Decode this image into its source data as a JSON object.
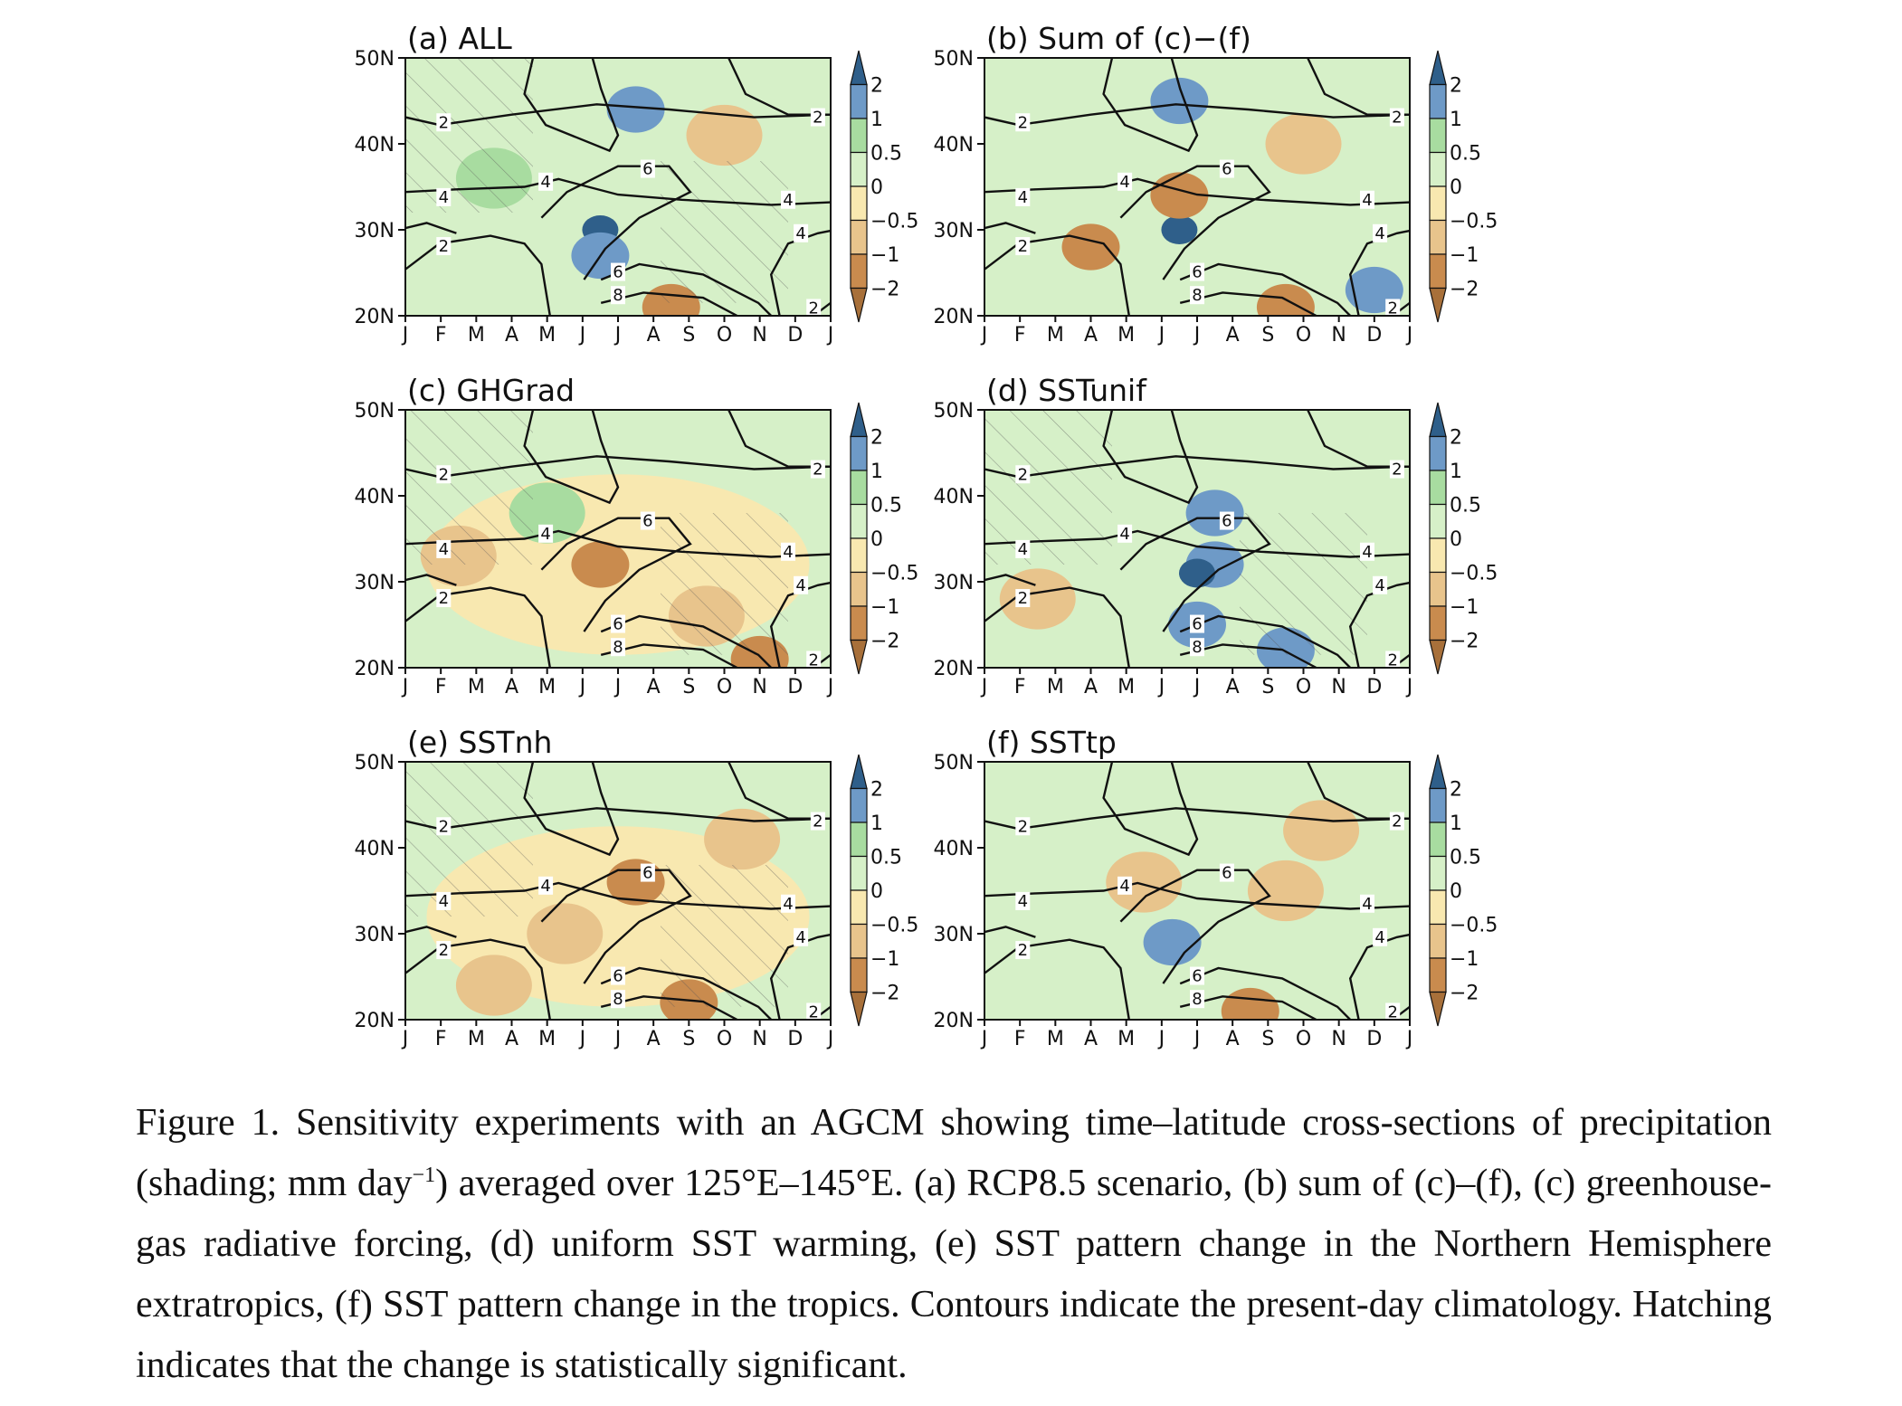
{
  "chart_data": [
    {
      "type": "heatmap",
      "id": "a",
      "title": "(a) ALL",
      "hatched": true,
      "ylabels": [
        "50N",
        "40N",
        "30N",
        "20N"
      ],
      "ylim": [
        20,
        50
      ],
      "months": [
        "J",
        "F",
        "M",
        "A",
        "M",
        "J",
        "J",
        "A",
        "S",
        "O",
        "N",
        "D",
        "J"
      ],
      "blobs": [
        {
          "month": 5.5,
          "lat": 30,
          "level": 2
        },
        {
          "month": 5.5,
          "lat": 27,
          "level": 1.5
        },
        {
          "month": 6.5,
          "lat": 44,
          "level": 1
        },
        {
          "month": 7.5,
          "lat": 21,
          "level": -1
        },
        {
          "month": 9,
          "lat": 41,
          "level": -0.6
        },
        {
          "month": 2.5,
          "lat": 36,
          "level": 0.6
        }
      ]
    },
    {
      "type": "heatmap",
      "id": "b",
      "title": "(b) Sum of (c)−(f)",
      "hatched": false,
      "ylabels": [
        "50N",
        "40N",
        "30N",
        "20N"
      ],
      "ylim": [
        20,
        50
      ],
      "months": [
        "J",
        "F",
        "M",
        "A",
        "M",
        "J",
        "J",
        "A",
        "S",
        "O",
        "N",
        "D",
        "J"
      ],
      "blobs": [
        {
          "month": 5.5,
          "lat": 30,
          "level": 2
        },
        {
          "month": 5.5,
          "lat": 34,
          "level": -1
        },
        {
          "month": 3,
          "lat": 28,
          "level": -1
        },
        {
          "month": 5.5,
          "lat": 45,
          "level": 1
        },
        {
          "month": 8.5,
          "lat": 21,
          "level": -1
        },
        {
          "month": 9,
          "lat": 40,
          "level": -0.6
        },
        {
          "month": 11,
          "lat": 23,
          "level": 1
        }
      ]
    },
    {
      "type": "heatmap",
      "id": "c",
      "title": "(c) GHGrad",
      "hatched": true,
      "ylabels": [
        "50N",
        "40N",
        "30N",
        "20N"
      ],
      "ylim": [
        20,
        50
      ],
      "months": [
        "J",
        "F",
        "M",
        "A",
        "M",
        "J",
        "J",
        "A",
        "S",
        "O",
        "N",
        "D",
        "J"
      ],
      "blobs": [
        {
          "month": 5.5,
          "lat": 32,
          "level": -1
        },
        {
          "month": 8.5,
          "lat": 26,
          "level": -0.6
        },
        {
          "month": 10,
          "lat": 21,
          "level": -1
        },
        {
          "month": 1.5,
          "lat": 33,
          "level": -0.6
        },
        {
          "month": 4,
          "lat": 38,
          "level": 0.6
        }
      ]
    },
    {
      "type": "heatmap",
      "id": "d",
      "title": "(d) SSTunif",
      "hatched": true,
      "ylabels": [
        "50N",
        "40N",
        "30N",
        "20N"
      ],
      "ylim": [
        20,
        50
      ],
      "months": [
        "J",
        "F",
        "M",
        "A",
        "M",
        "J",
        "J",
        "A",
        "S",
        "O",
        "N",
        "D",
        "J"
      ],
      "blobs": [
        {
          "month": 6.5,
          "lat": 32,
          "level": 1.5
        },
        {
          "month": 6,
          "lat": 25,
          "level": 1
        },
        {
          "month": 8.5,
          "lat": 22,
          "level": 1
        },
        {
          "month": 6.5,
          "lat": 38,
          "level": 1
        },
        {
          "month": 6,
          "lat": 31,
          "level": 2
        },
        {
          "month": 1.5,
          "lat": 28,
          "level": -0.6
        }
      ]
    },
    {
      "type": "heatmap",
      "id": "e",
      "title": "(e) SSTnh",
      "hatched": true,
      "ylabels": [
        "50N",
        "40N",
        "30N",
        "20N"
      ],
      "ylim": [
        20,
        50
      ],
      "months": [
        "J",
        "F",
        "M",
        "A",
        "M",
        "J",
        "J",
        "A",
        "S",
        "O",
        "N",
        "D",
        "J"
      ],
      "blobs": [
        {
          "month": 6.5,
          "lat": 36,
          "level": -1
        },
        {
          "month": 4.5,
          "lat": 30,
          "level": -0.6
        },
        {
          "month": 8,
          "lat": 22,
          "level": -1
        },
        {
          "month": 9.5,
          "lat": 41,
          "level": -0.6
        },
        {
          "month": 2.5,
          "lat": 24,
          "level": -0.6
        }
      ]
    },
    {
      "type": "heatmap",
      "id": "f",
      "title": "(f) SSTtp",
      "hatched": false,
      "ylabels": [
        "50N",
        "40N",
        "30N",
        "20N"
      ],
      "ylim": [
        20,
        50
      ],
      "months": [
        "J",
        "F",
        "M",
        "A",
        "M",
        "J",
        "J",
        "A",
        "S",
        "O",
        "N",
        "D",
        "J"
      ],
      "blobs": [
        {
          "month": 5.3,
          "lat": 29,
          "level": 1
        },
        {
          "month": 7.5,
          "lat": 21,
          "level": -1
        },
        {
          "month": 8.5,
          "lat": 35,
          "level": -0.6
        },
        {
          "month": 9.5,
          "lat": 42,
          "level": -0.6
        },
        {
          "month": 4.5,
          "lat": 36,
          "level": -0.6
        }
      ]
    }
  ],
  "colorbar": {
    "labels": [
      "2",
      "1",
      "0.5",
      "0",
      "−0.5",
      "−1",
      "−2"
    ],
    "colors": [
      "#2f5f8a",
      "#6e9ac7",
      "#a8dca0",
      "#d6f0c8",
      "#f8e8b0",
      "#e8c48c",
      "#c98b4e",
      "#a8703a"
    ]
  },
  "contours": {
    "levels": [
      "2",
      "4",
      "6",
      "4",
      "4",
      "2",
      "4",
      "2",
      "6",
      "8",
      "2"
    ]
  },
  "caption": {
    "part1": "Figure 1. Sensitivity experiments with an AGCM showing time–latitude cross-sections of precipitation (shading; mm day",
    "sup": "−1",
    "part2": ") averaged over 125°E–145°E. (a) RCP8.5 scenario, (b) sum of (c)–(f), (c) greenhouse-gas radiative forcing, (d) uniform SST warming, (e) SST pattern change in the Northern Hemisphere extratropics, (f) SST pattern change in the tropics. Contours indicate the present-day climatology. Hatching indicates that the change is statistically significant."
  },
  "colors": {
    "neg_strong": "#c98b4e",
    "neg_mod": "#e8c48c",
    "neg_weak": "#f8e8b0",
    "pos_weak": "#d6f0c8",
    "pos_mod": "#a8dca0",
    "pos_strong": "#6e9ac7",
    "pos_max": "#2f5f8a"
  }
}
